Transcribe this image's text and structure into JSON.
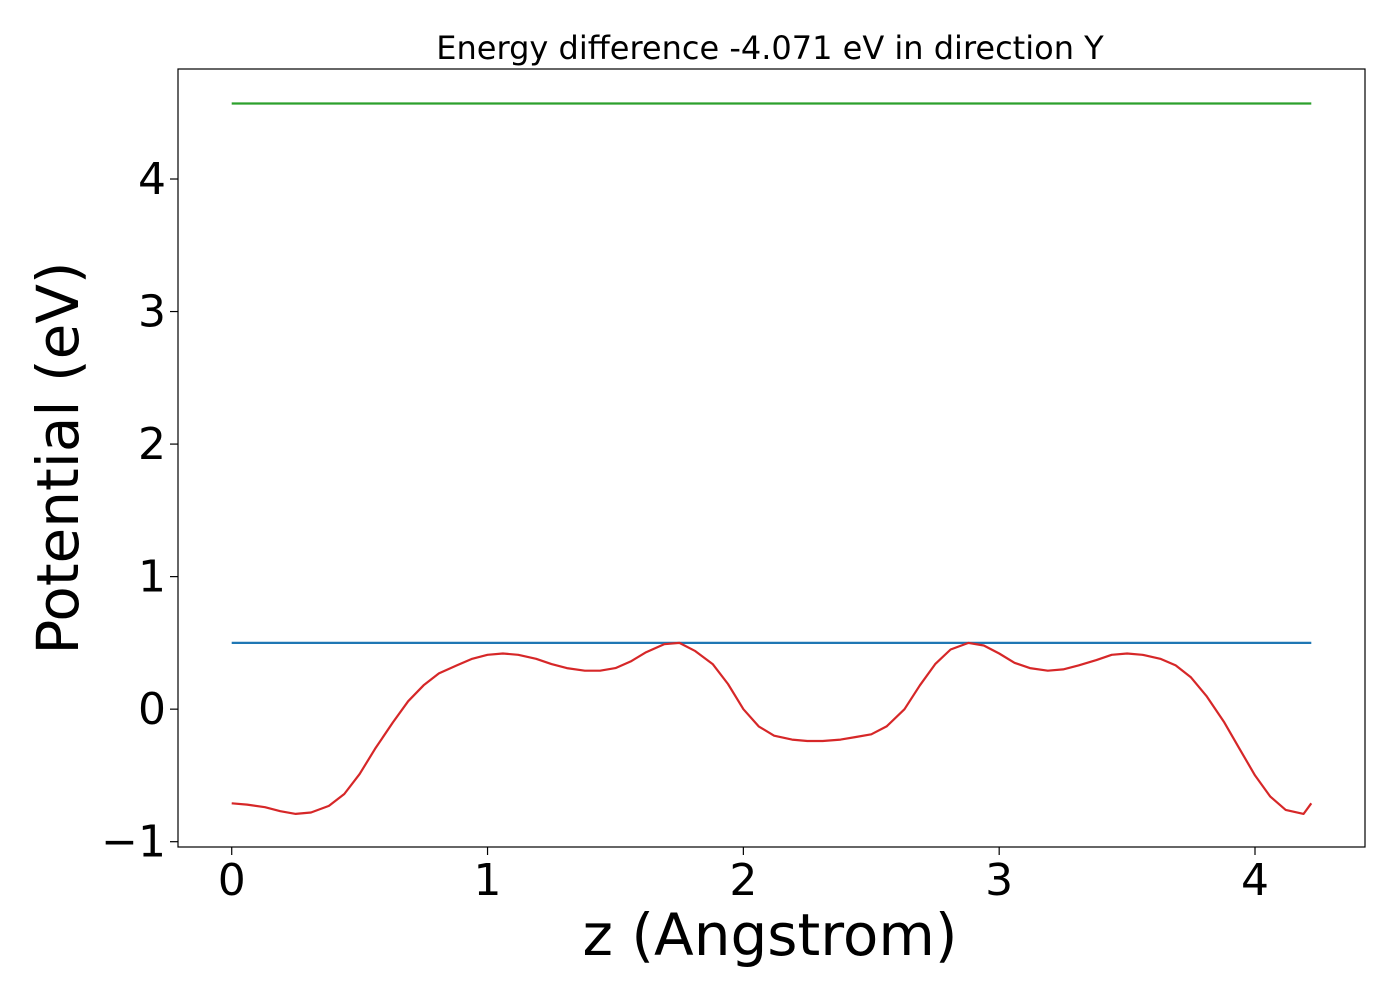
{
  "chart_data": {
    "type": "line",
    "title": "Energy difference -4.071 eV in direction Y",
    "xlabel": "z (Angstrom)",
    "ylabel": "Potential (eV)",
    "xlim": [
      -0.21,
      4.43
    ],
    "ylim": [
      -1.04,
      4.83
    ],
    "xticks": [
      0,
      1,
      2,
      3,
      4
    ],
    "xtick_labels": [
      "0",
      "1",
      "2",
      "3",
      "4"
    ],
    "yticks": [
      -1,
      0,
      1,
      2,
      3,
      4
    ],
    "ytick_labels": [
      "−1",
      "0",
      "1",
      "2",
      "3",
      "4"
    ],
    "grid": false,
    "series": [
      {
        "color": "#2ca02c",
        "x": [
          0.0,
          4.22
        ],
        "y": [
          4.57,
          4.57
        ]
      },
      {
        "color": "#1f77b4",
        "x": [
          0.0,
          4.22
        ],
        "y": [
          0.5,
          0.5
        ]
      },
      {
        "color": "#d62728",
        "x": [
          0.0,
          0.06,
          0.13,
          0.19,
          0.25,
          0.31,
          0.38,
          0.44,
          0.5,
          0.56,
          0.63,
          0.69,
          0.75,
          0.81,
          0.88,
          0.94,
          1.0,
          1.06,
          1.12,
          1.19,
          1.25,
          1.31,
          1.38,
          1.44,
          1.5,
          1.56,
          1.62,
          1.69,
          1.75,
          1.81,
          1.88,
          1.94,
          2.0,
          2.06,
          2.12,
          2.19,
          2.25,
          2.31,
          2.38,
          2.44,
          2.5,
          2.56,
          2.63,
          2.69,
          2.75,
          2.81,
          2.88,
          2.94,
          3.0,
          3.06,
          3.12,
          3.19,
          3.25,
          3.31,
          3.38,
          3.44,
          3.5,
          3.56,
          3.63,
          3.69,
          3.75,
          3.81,
          3.88,
          3.94,
          4.0,
          4.06,
          4.12,
          4.19,
          4.22
        ],
        "y": [
          -0.71,
          -0.72,
          -0.74,
          -0.77,
          -0.79,
          -0.78,
          -0.73,
          -0.64,
          -0.49,
          -0.3,
          -0.1,
          0.06,
          0.18,
          0.27,
          0.33,
          0.38,
          0.41,
          0.42,
          0.41,
          0.38,
          0.34,
          0.31,
          0.29,
          0.29,
          0.31,
          0.36,
          0.43,
          0.49,
          0.5,
          0.44,
          0.34,
          0.19,
          0.0,
          -0.13,
          -0.2,
          -0.23,
          -0.24,
          -0.24,
          -0.23,
          -0.21,
          -0.19,
          -0.13,
          0.0,
          0.18,
          0.34,
          0.45,
          0.5,
          0.48,
          0.42,
          0.35,
          0.31,
          0.29,
          0.3,
          0.33,
          0.37,
          0.41,
          0.42,
          0.41,
          0.38,
          0.33,
          0.24,
          0.1,
          -0.1,
          -0.3,
          -0.5,
          -0.66,
          -0.76,
          -0.79,
          -0.71
        ]
      }
    ]
  }
}
